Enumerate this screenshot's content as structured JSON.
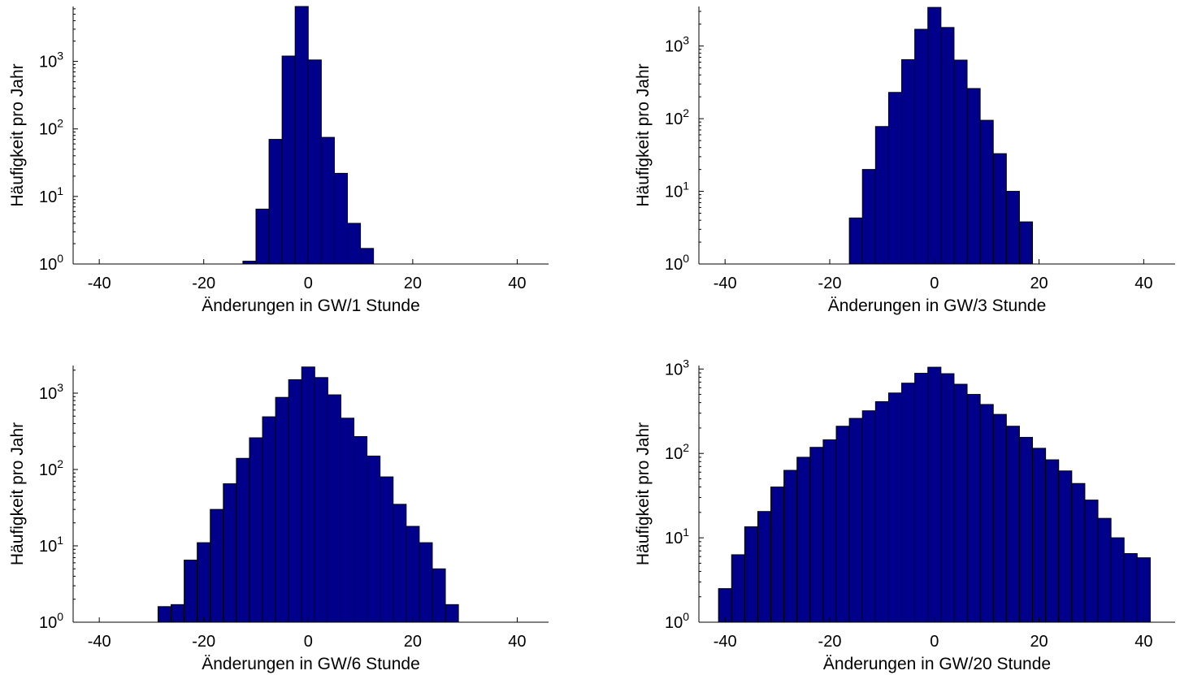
{
  "chart_data": [
    {
      "type": "bar",
      "title": "",
      "xlabel": "Änderungen in GW/1 Stunde",
      "ylabel": "Häufigkeit pro Jahr",
      "xlim": [
        -45,
        46
      ],
      "ylim": [
        1,
        6500
      ],
      "yscale": "log",
      "xticks": [
        -40,
        -20,
        0,
        20,
        40
      ],
      "yticks": [
        {
          "value": 1,
          "base": "10",
          "exp": "0"
        },
        {
          "value": 10,
          "base": "10",
          "exp": "1"
        },
        {
          "value": 100,
          "base": "10",
          "exp": "2"
        },
        {
          "value": 1000,
          "base": "10",
          "exp": "3"
        }
      ],
      "bin_width": 2.5,
      "bin_centers": [
        -11.25,
        -8.75,
        -6.25,
        -3.75,
        -1.25,
        1.25,
        3.75,
        6.25,
        8.75,
        11.25
      ],
      "values": [
        1.1,
        6.5,
        70,
        1200,
        6500,
        1050,
        75,
        22,
        4,
        1.7
      ],
      "bar_color": "#00008b"
    },
    {
      "type": "bar",
      "title": "",
      "xlabel": "Änderungen in GW/3 Stunde",
      "ylabel": "Häufigkeit pro Jahr",
      "xlim": [
        -45,
        46
      ],
      "ylim": [
        1,
        3500
      ],
      "yscale": "log",
      "xticks": [
        -40,
        -20,
        0,
        20,
        40
      ],
      "yticks": [
        {
          "value": 1,
          "base": "10",
          "exp": "0"
        },
        {
          "value": 10,
          "base": "10",
          "exp": "1"
        },
        {
          "value": 100,
          "base": "10",
          "exp": "2"
        },
        {
          "value": 1000,
          "base": "10",
          "exp": "3"
        }
      ],
      "bin_width": 2.5,
      "bin_centers": [
        -15,
        -12.5,
        -10,
        -7.5,
        -5,
        -2.5,
        0,
        2.5,
        5,
        7.5,
        10,
        12.5,
        15,
        17.5
      ],
      "values": [
        4.3,
        20,
        78,
        230,
        650,
        1700,
        3400,
        1800,
        640,
        260,
        95,
        33,
        10,
        3.8
      ],
      "bar_color": "#00008b"
    },
    {
      "type": "bar",
      "title": "",
      "xlabel": "Änderungen in GW/6 Stunde",
      "ylabel": "Häufigkeit pro Jahr",
      "xlim": [
        -45,
        46
      ],
      "ylim": [
        1,
        2300
      ],
      "yscale": "log",
      "xticks": [
        -40,
        -20,
        0,
        20,
        40
      ],
      "yticks": [
        {
          "value": 1,
          "base": "10",
          "exp": "0"
        },
        {
          "value": 10,
          "base": "10",
          "exp": "1"
        },
        {
          "value": 100,
          "base": "10",
          "exp": "2"
        },
        {
          "value": 1000,
          "base": "10",
          "exp": "3"
        }
      ],
      "bin_width": 2.5,
      "bin_centers": [
        -27.5,
        -25,
        -22.5,
        -20,
        -17.5,
        -15,
        -12.5,
        -10,
        -7.5,
        -5,
        -2.5,
        0,
        2.5,
        5,
        7.5,
        10,
        12.5,
        15,
        17.5,
        20,
        22.5,
        25,
        27.5
      ],
      "values": [
        1.6,
        1.7,
        6.5,
        11,
        30,
        65,
        140,
        260,
        490,
        880,
        1500,
        2200,
        1600,
        950,
        470,
        270,
        150,
        80,
        35,
        18,
        11,
        5,
        1.7
      ],
      "bar_color": "#00008b"
    },
    {
      "type": "bar",
      "title": "",
      "xlabel": "Änderungen in GW/20 Stunde",
      "ylabel": "Häufigkeit pro Jahr",
      "xlim": [
        -45,
        46
      ],
      "ylim": [
        1,
        1100
      ],
      "yscale": "log",
      "xticks": [
        -40,
        -20,
        0,
        20,
        40
      ],
      "yticks": [
        {
          "value": 1,
          "base": "10",
          "exp": "0"
        },
        {
          "value": 10,
          "base": "10",
          "exp": "1"
        },
        {
          "value": 100,
          "base": "10",
          "exp": "2"
        },
        {
          "value": 1000,
          "base": "10",
          "exp": "3"
        }
      ],
      "bin_width": 2.5,
      "bin_centers": [
        -40,
        -37.5,
        -35,
        -32.5,
        -30,
        -27.5,
        -25,
        -22.5,
        -20,
        -17.5,
        -15,
        -12.5,
        -10,
        -7.5,
        -5,
        -2.5,
        0,
        2.5,
        5,
        7.5,
        10,
        12.5,
        15,
        17.5,
        20,
        22.5,
        25,
        27.5,
        30,
        32.5,
        35,
        37.5,
        40
      ],
      "values": [
        2.5,
        6.3,
        13.5,
        20.5,
        40,
        63,
        90,
        118,
        145,
        210,
        260,
        320,
        410,
        520,
        680,
        890,
        1050,
        880,
        660,
        500,
        380,
        290,
        210,
        155,
        115,
        84,
        62,
        44,
        28,
        17,
        10,
        6.5,
        5.8
      ],
      "bar_color": "#00008b"
    }
  ]
}
